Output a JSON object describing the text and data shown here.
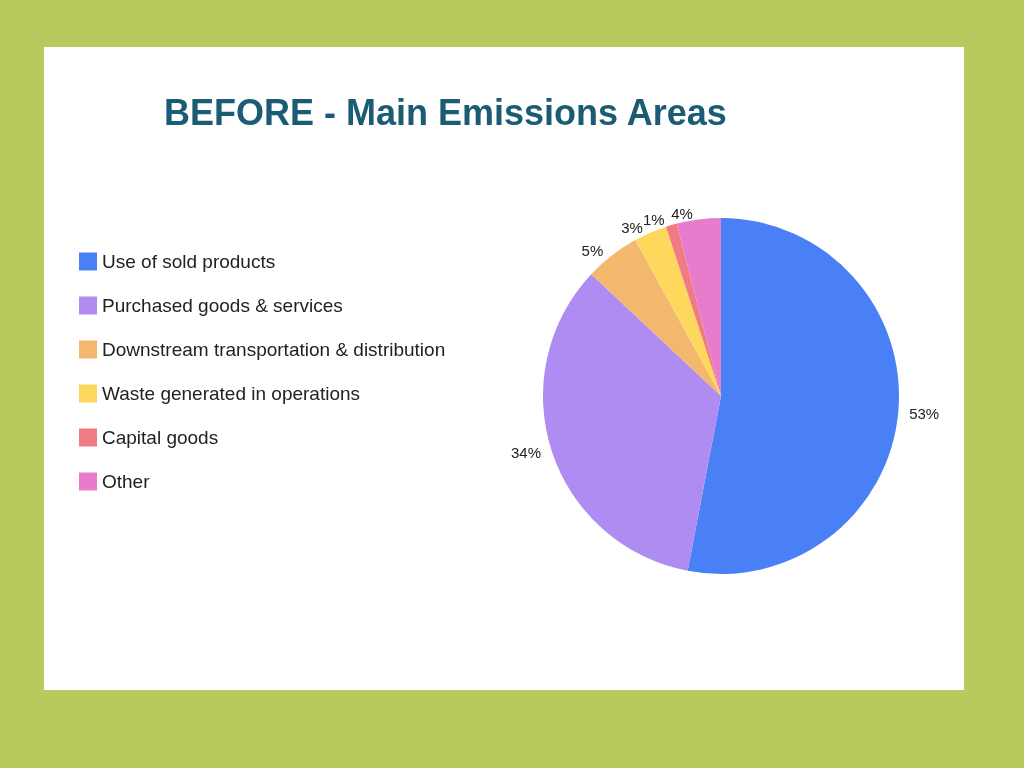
{
  "chart_data": {
    "type": "pie",
    "title": "BEFORE - Main Emissions Areas",
    "categories": [
      "Use of sold products",
      "Purchased goods & services",
      "Downstream transportation & distribution",
      "Waste generated in operations",
      "Capital goods",
      "Other"
    ],
    "values": [
      53,
      34,
      5,
      3,
      1,
      4
    ],
    "value_labels": [
      "53%",
      "34%",
      "5%",
      "3%",
      "1%",
      "4%"
    ],
    "colors": [
      "#4a80f5",
      "#ae8cf2",
      "#f4b76e",
      "#fdd85d",
      "#f07b82",
      "#e77ccd"
    ],
    "legend": "left"
  }
}
